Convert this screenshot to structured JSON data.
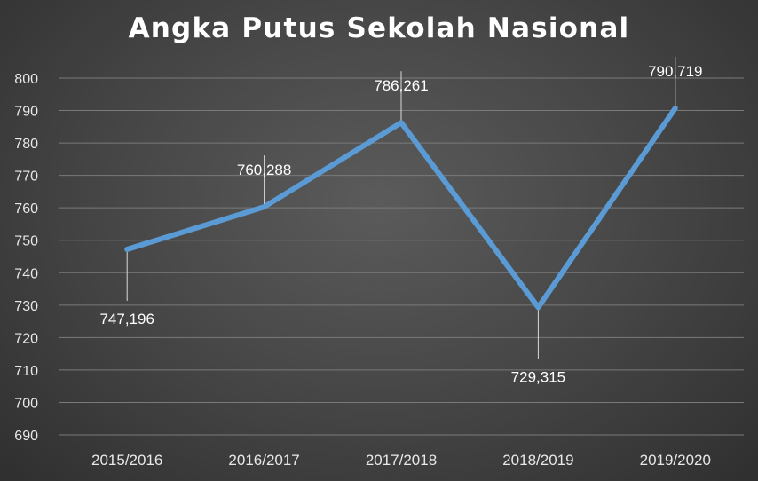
{
  "chart_data": {
    "type": "line",
    "title": "Angka Putus Sekolah Nasional",
    "categories": [
      "2015/2016",
      "2016/2017",
      "2017/2018",
      "2018/2019",
      "2019/2020"
    ],
    "series": [
      {
        "values": [
          747.196,
          760.288,
          786.261,
          729.315,
          790.719
        ]
      }
    ],
    "data_labels": [
      "747,196",
      "760,288",
      "786,261",
      "729,315",
      "790,719"
    ],
    "y_ticks": [
      "690",
      "700",
      "710",
      "720",
      "730",
      "740",
      "750",
      "760",
      "770",
      "780",
      "790",
      "800"
    ],
    "ylim": [
      690,
      800
    ],
    "grid": true,
    "line_color": "#5b9bd5",
    "label_positions": [
      "below",
      "above",
      "above",
      "below",
      "above"
    ]
  }
}
